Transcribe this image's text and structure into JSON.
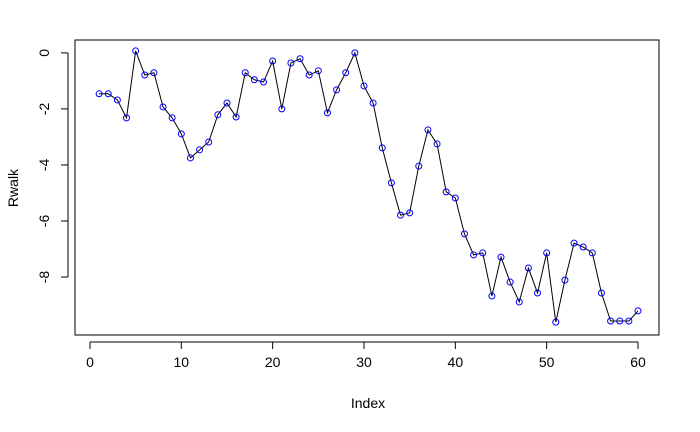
{
  "chart_data": {
    "type": "line",
    "xlabel": "Index",
    "ylabel": "Rwalk",
    "x": [
      1,
      2,
      3,
      4,
      5,
      6,
      7,
      8,
      9,
      10,
      11,
      12,
      13,
      14,
      15,
      16,
      17,
      18,
      19,
      20,
      21,
      22,
      23,
      24,
      25,
      26,
      27,
      28,
      29,
      30,
      31,
      32,
      33,
      34,
      35,
      36,
      37,
      38,
      39,
      40,
      41,
      42,
      43,
      44,
      45,
      46,
      47,
      48,
      49,
      50,
      51,
      52,
      53,
      54,
      55,
      56,
      57,
      58,
      59,
      60
    ],
    "values": [
      -1.46,
      -1.46,
      -1.68,
      -2.32,
      0.07,
      -0.79,
      -0.71,
      -1.93,
      -2.32,
      -2.89,
      -3.75,
      -3.46,
      -3.18,
      -2.21,
      -1.79,
      -2.29,
      -0.71,
      -0.96,
      -1.04,
      -0.29,
      -2.0,
      -0.36,
      -0.21,
      -0.79,
      -0.64,
      -2.14,
      -1.32,
      -0.71,
      0.0,
      -1.18,
      -1.79,
      -3.39,
      -4.64,
      -5.79,
      -5.71,
      -4.04,
      -2.75,
      -3.25,
      -4.96,
      -5.18,
      -6.46,
      -7.21,
      -7.14,
      -8.68,
      -7.29,
      -8.18,
      -8.89,
      -7.68,
      -8.57,
      -7.14,
      -9.61,
      -8.11,
      -6.79,
      -6.93,
      -7.14,
      -8.57,
      -9.57,
      -9.57,
      -9.57,
      -9.21
    ],
    "color": "#000000",
    "marker_color": "#0000ff",
    "xlim": [
      -1.64,
      62.3
    ],
    "ylim": [
      -10.07,
      0.46
    ],
    "xticks": [
      0,
      10,
      20,
      30,
      40,
      50,
      60
    ],
    "yticks": [
      0,
      -2,
      -4,
      -6,
      -8
    ]
  }
}
